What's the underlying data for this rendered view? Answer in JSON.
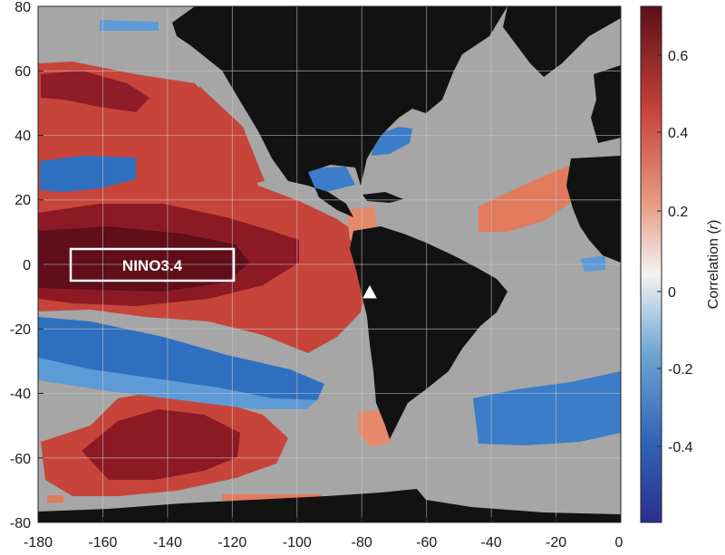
{
  "map": {
    "x_ticks": [
      "-180",
      "-160",
      "-140",
      "-120",
      "-100",
      "-80",
      "-60",
      "-40",
      "-20",
      "0"
    ],
    "y_ticks": [
      "80",
      "60",
      "40",
      "20",
      "0",
      "-20",
      "-40",
      "-60",
      "-80"
    ],
    "region_box_label": "NINO3.4",
    "marker": "triangle",
    "colors": {
      "ocean_background": "#a6a6a6",
      "land": "#121212",
      "strong_positive": "#6b0d1c",
      "positive": "#c6443a",
      "weak_positive": "#e48a6a",
      "negative": "#2f6fc0",
      "weak_negative": "#5e9bd6"
    }
  },
  "colorbar": {
    "tick_labels": [
      "0.6",
      "0.4",
      "0.2",
      "0",
      "-0.2",
      "-0.4"
    ],
    "title_prefix": "Correlation (",
    "title_var": "r",
    "title_suffix": ")",
    "colormap": [
      "#2a2f8f",
      "#3265b5",
      "#6ea7d3",
      "#f3f3f3",
      "#e59a82",
      "#c7423a",
      "#5b0f1a"
    ]
  }
}
